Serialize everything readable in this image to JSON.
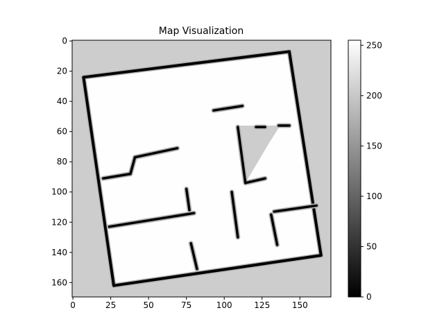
{
  "chart_data": {
    "type": "heatmap",
    "title": "Map Visualization",
    "xlabel": "",
    "ylabel": "",
    "xlim": [
      -0.5,
      170.5
    ],
    "ylim": [
      169.5,
      -0.5
    ],
    "x_ticks": [
      0,
      25,
      50,
      75,
      100,
      125,
      150
    ],
    "y_ticks": [
      0,
      20,
      40,
      60,
      80,
      100,
      120,
      140,
      160
    ],
    "colormap": "gray",
    "colorbar": {
      "range": [
        0,
        255
      ],
      "ticks": [
        0,
        50,
        100,
        150,
        200,
        250
      ]
    },
    "cell_values": {
      "unknown": 205,
      "free": 254,
      "frontier": 180,
      "occupied": 0
    },
    "map": {
      "outer_wall": [
        [
          7,
          24
        ],
        [
          143,
          7
        ],
        [
          164,
          142
        ],
        [
          27,
          162
        ]
      ],
      "interior_walls": [
        [
          [
            20,
            91
          ],
          [
            38,
            88
          ]
        ],
        [
          [
            38,
            88
          ],
          [
            41,
            77
          ]
        ],
        [
          [
            41,
            77
          ],
          [
            69,
            71
          ]
        ],
        [
          [
            24,
            123
          ],
          [
            80,
            114
          ]
        ],
        [
          [
            75,
            98
          ],
          [
            77,
            112
          ]
        ],
        [
          [
            78,
            134
          ],
          [
            82,
            151
          ]
        ],
        [
          [
            93,
            46
          ],
          [
            112,
            43
          ]
        ],
        [
          [
            109,
            57
          ],
          [
            114,
            94
          ]
        ],
        [
          [
            114,
            94
          ],
          [
            127,
            91
          ]
        ],
        [
          [
            121,
            57
          ],
          [
            127,
            57
          ]
        ],
        [
          [
            133,
            113
          ],
          [
            161,
            109
          ]
        ],
        [
          [
            131,
            115
          ],
          [
            135,
            135
          ]
        ],
        [
          [
            105,
            100
          ],
          [
            109,
            130
          ]
        ],
        [
          [
            136,
            56
          ],
          [
            143,
            56
          ]
        ]
      ],
      "unknown_regions": [
        [
          [
            109,
            56
          ],
          [
            137,
            56
          ],
          [
            130,
            67
          ],
          [
            114,
            94
          ]
        ]
      ]
    },
    "colors": {
      "unknown": "#cdcdcd",
      "free": "#fefefe",
      "frontier": "#b4b4b4",
      "occupied": "#000000"
    },
    "legend": "none",
    "grid": false
  }
}
